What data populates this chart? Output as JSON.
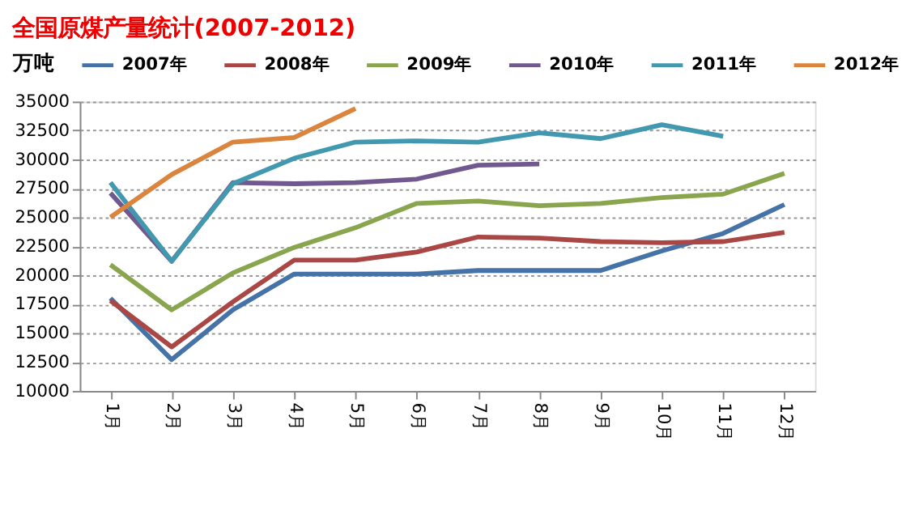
{
  "chart_data": {
    "type": "line",
    "title": "全国原煤产量统计(2007-2012)",
    "ylabel": "万吨",
    "categories": [
      "1月",
      "2月",
      "3月",
      "4月",
      "5月",
      "6月",
      "7月",
      "8月",
      "9月",
      "10月",
      "11月",
      "12月"
    ],
    "series": [
      {
        "name": "2007年",
        "color": "#4572a7",
        "values": [
          18000,
          12700,
          17000,
          20100,
          20100,
          20100,
          20400,
          20400,
          20400,
          22100,
          23600,
          26100
        ]
      },
      {
        "name": "2008年",
        "color": "#aa4643",
        "values": [
          17800,
          13800,
          17700,
          21300,
          21300,
          22000,
          23300,
          23200,
          22900,
          22800,
          22900,
          23700
        ]
      },
      {
        "name": "2009年",
        "color": "#89a54e",
        "values": [
          20900,
          17000,
          20200,
          22400,
          24100,
          26200,
          26400,
          26000,
          26200,
          26700,
          27000,
          28800
        ]
      },
      {
        "name": "2010年",
        "color": "#71588f",
        "values": [
          27100,
          21200,
          28000,
          27900,
          28000,
          28300,
          29500,
          29600,
          null,
          null,
          null,
          null
        ]
      },
      {
        "name": "2011年",
        "color": "#4198af",
        "values": [
          28000,
          21200,
          27900,
          30100,
          31500,
          31600,
          31500,
          32300,
          31800,
          33000,
          32000,
          null
        ]
      },
      {
        "name": "2012年",
        "color": "#db843d",
        "values": [
          25000,
          28700,
          31500,
          31900,
          34400,
          null,
          null,
          null,
          null,
          null,
          null,
          null
        ]
      }
    ],
    "ylim": [
      10000,
      35000
    ],
    "yticks": [
      10000,
      12500,
      15000,
      17500,
      20000,
      22500,
      25000,
      27500,
      30000,
      32500,
      35000
    ],
    "grid": "y",
    "legend": "top",
    "marker": "none",
    "line_style": "solid"
  }
}
